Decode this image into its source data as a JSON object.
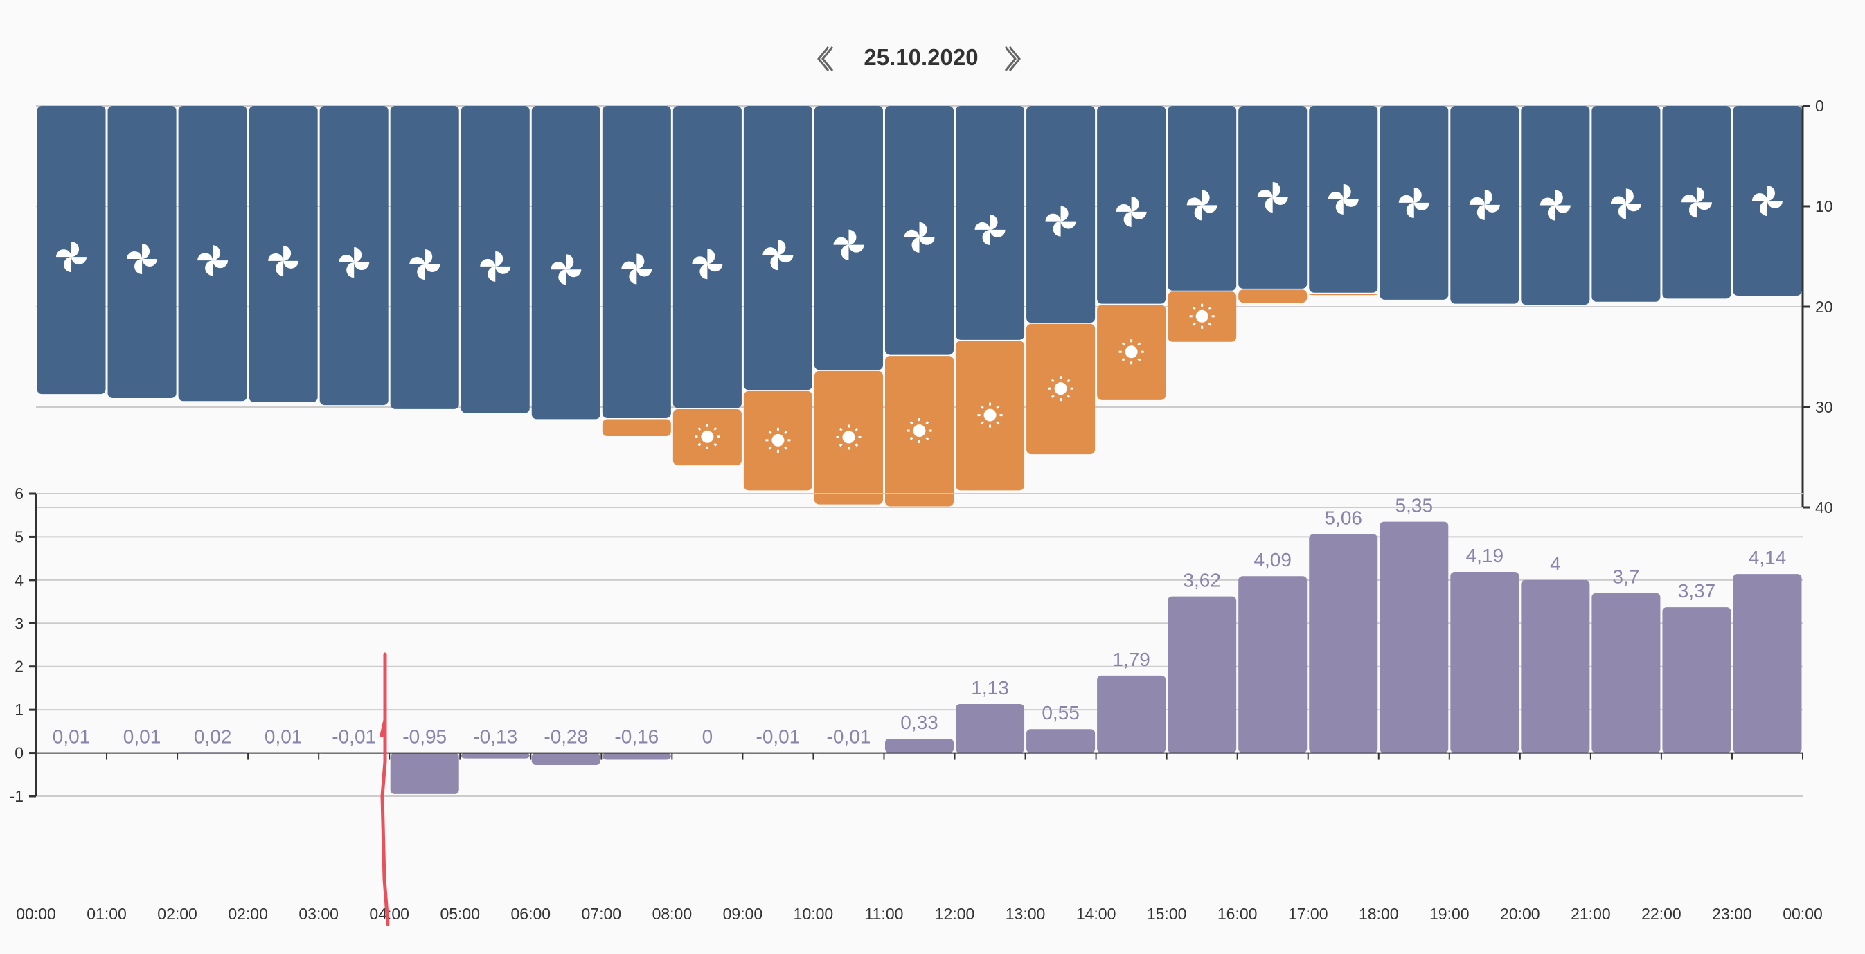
{
  "header": {
    "date": "25.10.2020",
    "prev_icon": "double-chevron-left-icon",
    "next_icon": "double-chevron-right-icon"
  },
  "colors": {
    "background": "#fafafa",
    "fan_bar": "#44648a",
    "sun_bar": "#e08e4a",
    "balance_bar": "#9188ad",
    "balance_label": "#8a84aa",
    "axis": "#333333",
    "grid": "#cccccc",
    "annotation": "#e8505b"
  },
  "chart_data": [
    {
      "type": "bar",
      "subtype": "stacked-from-top",
      "title": "",
      "categories": [
        "00:00",
        "01:00",
        "02:00",
        "02:00",
        "03:00",
        "04:00",
        "05:00",
        "06:00",
        "07:00",
        "08:00",
        "09:00",
        "10:00",
        "11:00",
        "12:00",
        "13:00",
        "14:00",
        "15:00",
        "16:00",
        "17:00",
        "18:00",
        "19:00",
        "20:00",
        "21:00",
        "22:00",
        "23:00"
      ],
      "series": [
        {
          "name": "fan",
          "icon": "fan-icon",
          "values": [
            28.7,
            29.1,
            29.4,
            29.5,
            29.8,
            30.2,
            30.6,
            31.2,
            31.1,
            30.1,
            28.3,
            26.3,
            24.8,
            23.3,
            21.6,
            19.7,
            18.4,
            18.2,
            18.6,
            19.3,
            19.7,
            19.8,
            19.5,
            19.2,
            18.9
          ]
        },
        {
          "name": "sun",
          "icon": "sun-icon",
          "values": [
            0,
            0,
            0,
            0,
            0,
            0,
            0,
            0,
            1.8,
            5.7,
            10.0,
            13.4,
            15.1,
            15.0,
            13.1,
            9.6,
            5.1,
            1.4,
            0.1,
            0,
            0,
            0,
            0,
            0,
            0
          ]
        }
      ],
      "show_icon": [
        true,
        true,
        true,
        true,
        true,
        true,
        true,
        true,
        false,
        true,
        true,
        true,
        true,
        true,
        true,
        true,
        true,
        false,
        false,
        false,
        false,
        false,
        false,
        false,
        false
      ],
      "show_sun_icon": [
        false,
        false,
        false,
        false,
        false,
        false,
        false,
        false,
        false,
        true,
        true,
        true,
        true,
        true,
        true,
        true,
        true,
        false,
        false,
        false,
        false,
        false,
        false,
        false,
        false
      ],
      "yaxis": {
        "position": "right",
        "inverted": true,
        "ticks": [
          0,
          10,
          20,
          30,
          40
        ],
        "ylim": [
          0,
          40
        ]
      },
      "grid": true
    },
    {
      "type": "bar",
      "title": "",
      "xlabel": "",
      "ylabel": "",
      "categories": [
        "00:00",
        "01:00",
        "02:00",
        "02:00",
        "03:00",
        "04:00",
        "05:00",
        "06:00",
        "07:00",
        "08:00",
        "09:00",
        "10:00",
        "11:00",
        "12:00",
        "13:00",
        "14:00",
        "15:00",
        "16:00",
        "17:00",
        "18:00",
        "19:00",
        "20:00",
        "21:00",
        "22:00",
        "23:00"
      ],
      "values": [
        0.01,
        0.01,
        0.02,
        0.01,
        -0.01,
        -0.95,
        -0.13,
        -0.28,
        -0.16,
        0,
        -0.01,
        -0.01,
        0.33,
        1.13,
        0.55,
        1.79,
        3.62,
        4.09,
        5.06,
        5.35,
        4.19,
        4,
        3.7,
        3.37,
        4.14
      ],
      "value_labels": [
        "0,01",
        "0,01",
        "0,02",
        "0,01",
        "-0,01",
        "-0,95",
        "-0,13",
        "-0,28",
        "-0,16",
        "0",
        "-0,01",
        "-0,01",
        "0,33",
        "1,13",
        "0,55",
        "1,79",
        "3,62",
        "4,09",
        "5,06",
        "5,35",
        "4,19",
        "4",
        "3,7",
        "3,37",
        "4,14"
      ],
      "x_tick_labels": [
        "00:00",
        "01:00",
        "02:00",
        "02:00",
        "03:00",
        "04:00",
        "05:00",
        "06:00",
        "07:00",
        "08:00",
        "09:00",
        "10:00",
        "11:00",
        "12:00",
        "13:00",
        "14:00",
        "15:00",
        "16:00",
        "17:00",
        "18:00",
        "19:00",
        "20:00",
        "21:00",
        "22:00",
        "23:00",
        "00:00"
      ],
      "yaxis": {
        "position": "left",
        "ticks": [
          -1,
          0,
          1,
          2,
          3,
          4,
          5,
          6
        ],
        "ylim": [
          -1,
          6
        ]
      },
      "grid": true
    }
  ],
  "annotation": {
    "type": "hand-drawn-line",
    "near_tick": "04:00"
  }
}
